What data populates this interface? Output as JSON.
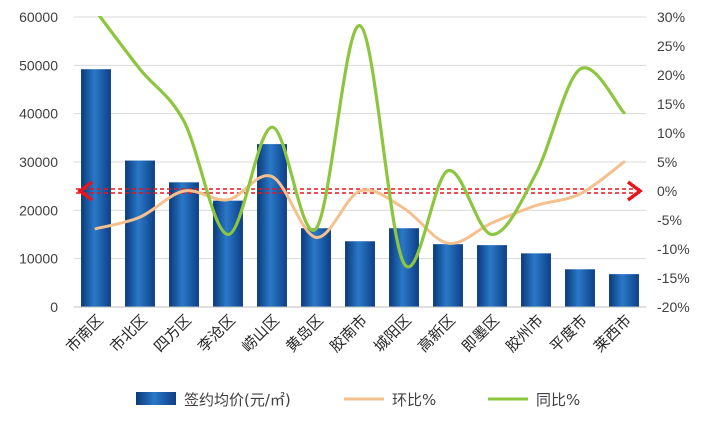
{
  "chart_data": {
    "type": "bar",
    "categories": [
      "市南区",
      "市北区",
      "四方区",
      "李沧区",
      "崂山区",
      "黄岛区",
      "胶南市",
      "城阳区",
      "高新区",
      "即墨区",
      "胶州市",
      "平度市",
      "莱西市"
    ],
    "series": [
      {
        "name": "签约均价(元/㎡)",
        "type": "bar",
        "axis": "left",
        "color": "#1f5fae",
        "values": [
          49200,
          30300,
          25800,
          22000,
          33700,
          16300,
          13600,
          16300,
          13000,
          12800,
          11100,
          7800,
          6800
        ]
      },
      {
        "name": "环比%",
        "type": "line",
        "axis": "right",
        "color": "#f6c08e",
        "values": [
          -6.5,
          -4.5,
          0,
          -1.5,
          2.5,
          -8,
          0,
          -3,
          -9,
          -5.5,
          -2.5,
          -0.5,
          5
        ]
      },
      {
        "name": "同比%",
        "type": "line",
        "axis": "right",
        "color": "#8cc63f",
        "values": [
          31,
          21,
          12,
          -7.5,
          11,
          -6.5,
          28.5,
          -12.5,
          3.5,
          -7.5,
          3,
          21,
          13.5
        ]
      }
    ],
    "y_left": {
      "min": 0,
      "max": 60000,
      "ticks": [
        "0",
        "10000",
        "20000",
        "30000",
        "40000",
        "50000",
        "60000"
      ]
    },
    "y_right": {
      "min": -20,
      "max": 30,
      "ticks": [
        "-20%",
        "-15%",
        "-10%",
        "-5%",
        "0%",
        "5%",
        "10%",
        "15%",
        "20%",
        "25%",
        "30%"
      ]
    },
    "reference_line": {
      "axis": "right",
      "value": 0,
      "color": "#e8141c"
    },
    "legend": {
      "position": "bottom"
    }
  }
}
